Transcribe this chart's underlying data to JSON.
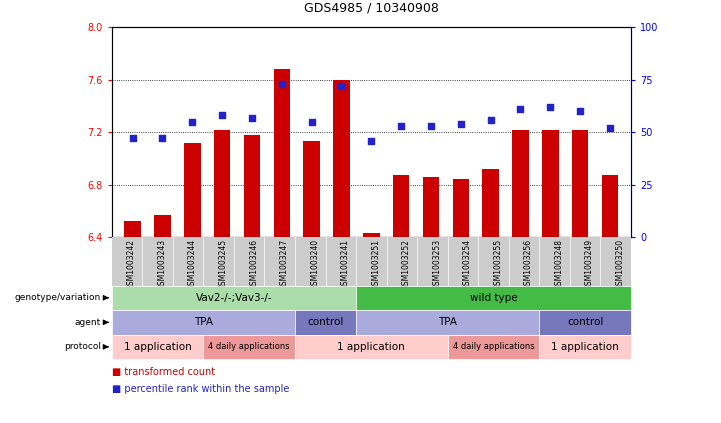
{
  "title": "GDS4985 / 10340908",
  "samples": [
    "GSM1003242",
    "GSM1003243",
    "GSM1003244",
    "GSM1003245",
    "GSM1003246",
    "GSM1003247",
    "GSM1003240",
    "GSM1003241",
    "GSM1003251",
    "GSM1003252",
    "GSM1003253",
    "GSM1003254",
    "GSM1003255",
    "GSM1003256",
    "GSM1003248",
    "GSM1003249",
    "GSM1003250"
  ],
  "bar_values": [
    6.52,
    6.57,
    7.12,
    7.22,
    7.18,
    7.68,
    7.13,
    7.6,
    6.43,
    6.87,
    6.86,
    6.84,
    6.92,
    7.22,
    7.22,
    7.22,
    6.87
  ],
  "dot_values": [
    47,
    47,
    55,
    58,
    57,
    73,
    55,
    72,
    46,
    53,
    53,
    54,
    56,
    61,
    62,
    60,
    52
  ],
  "ylim_left": [
    6.4,
    8.0
  ],
  "ylim_right": [
    0,
    100
  ],
  "yticks_left": [
    6.4,
    6.8,
    7.2,
    7.6,
    8.0
  ],
  "yticks_right": [
    0,
    25,
    50,
    75,
    100
  ],
  "bar_color": "#cc0000",
  "dot_color": "#2222cc",
  "plot_bg": "#ffffff",
  "genotype_groups": [
    {
      "label": "Vav2-/-;Vav3-/-",
      "start": 0,
      "end": 8,
      "color": "#aaddaa"
    },
    {
      "label": "wild type",
      "start": 8,
      "end": 17,
      "color": "#44bb44"
    }
  ],
  "agent_groups": [
    {
      "label": "TPA",
      "start": 0,
      "end": 6,
      "color": "#aaaadd"
    },
    {
      "label": "control",
      "start": 6,
      "end": 8,
      "color": "#7777bb"
    },
    {
      "label": "TPA",
      "start": 8,
      "end": 14,
      "color": "#aaaadd"
    },
    {
      "label": "control",
      "start": 14,
      "end": 17,
      "color": "#7777bb"
    }
  ],
  "protocol_groups": [
    {
      "label": "1 application",
      "start": 0,
      "end": 3,
      "color": "#ffcccc"
    },
    {
      "label": "4 daily applications",
      "start": 3,
      "end": 6,
      "color": "#ee9999"
    },
    {
      "label": "1 application",
      "start": 6,
      "end": 11,
      "color": "#ffcccc"
    },
    {
      "label": "4 daily applications",
      "start": 11,
      "end": 14,
      "color": "#ee9999"
    },
    {
      "label": "1 application",
      "start": 14,
      "end": 17,
      "color": "#ffcccc"
    }
  ],
  "row_labels": [
    "genotype/variation",
    "agent",
    "protocol"
  ],
  "xtick_bg": "#cccccc"
}
